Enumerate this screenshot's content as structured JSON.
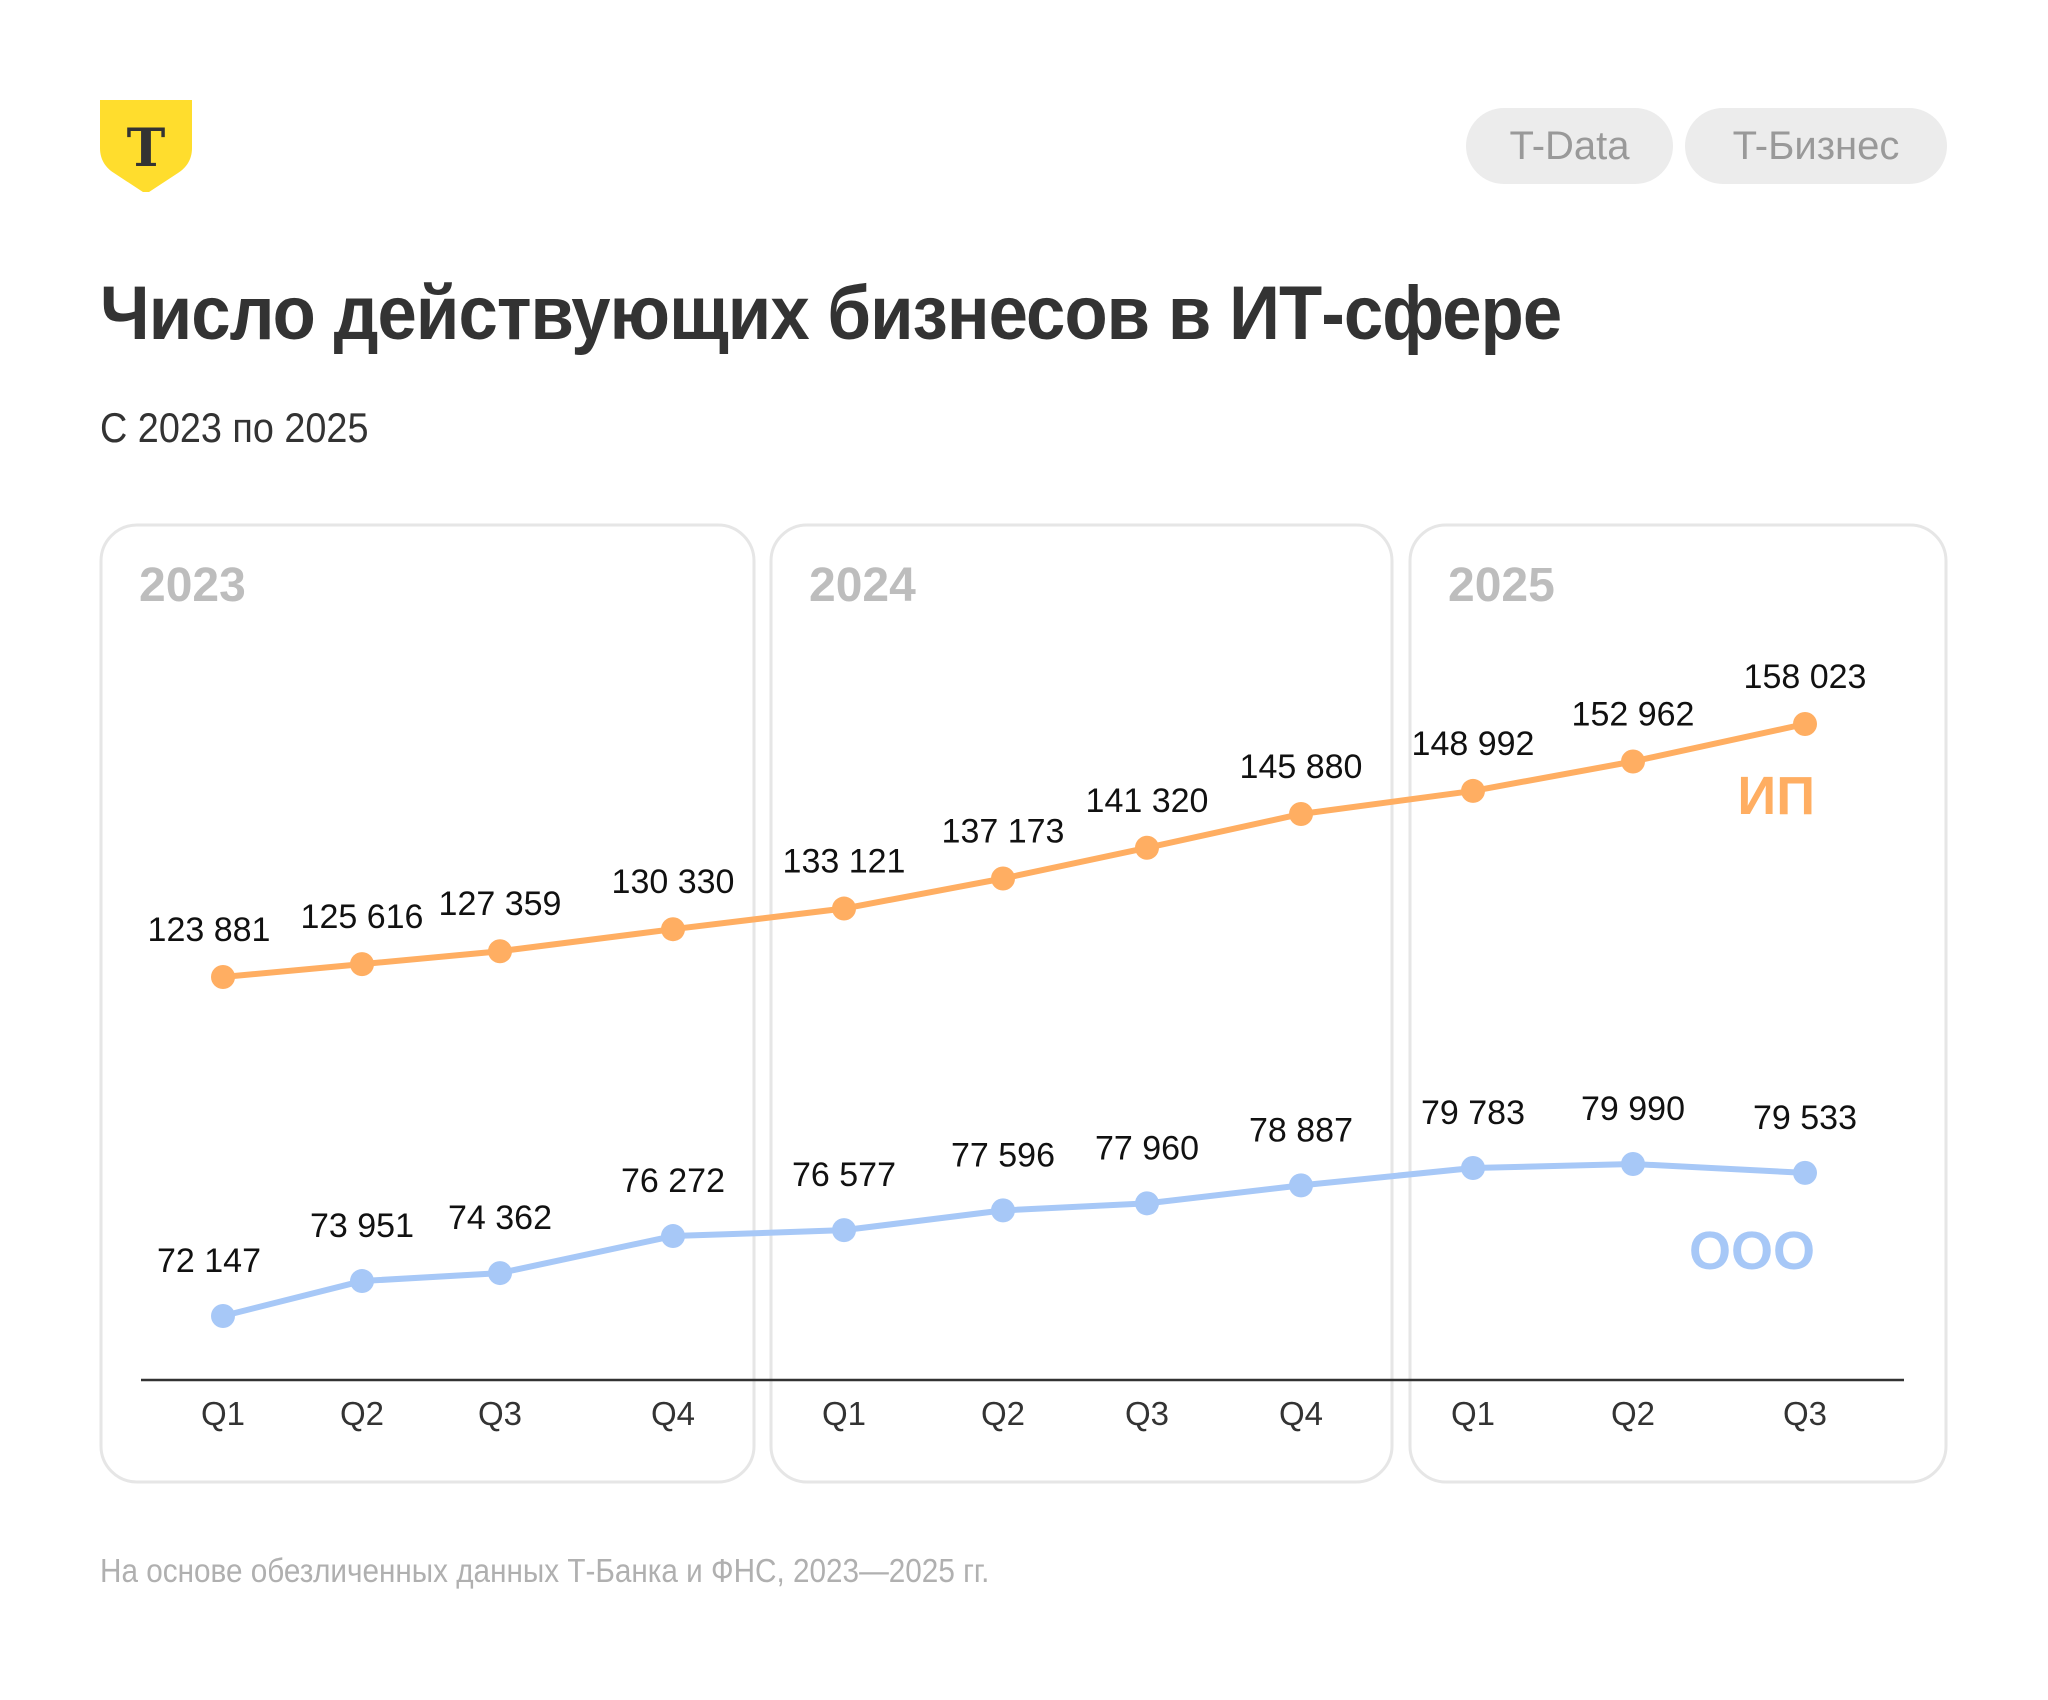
{
  "header": {
    "logo_icon": "t-bank-shield-logo",
    "logo_letter": "Т",
    "badges": [
      "T-Data",
      "T-Бизнес"
    ]
  },
  "title": "Число действующих бизнесов в ИТ-сфере",
  "subtitle": "С 2023 по 2025",
  "footer": "На основе обезличенных данных Т-Банка и ФНС, 2023—2025 гг.",
  "colors": {
    "brand_yellow": "#FFDD2D",
    "ip": "#FFAE62",
    "ooo": "#A7C8F7",
    "year_label": "#BDBDBD",
    "panel_border": "#E6E6E6",
    "axis": "#333333"
  },
  "chart_data": {
    "type": "line",
    "title": "Число действующих бизнесов в ИТ-сфере",
    "subtitle": "С 2023 по 2025",
    "xlabel": "",
    "ylabel": "",
    "grid": false,
    "legend": "inline-right",
    "groups": [
      {
        "year": "2023",
        "quarters": [
          "Q1",
          "Q2",
          "Q3",
          "Q4"
        ]
      },
      {
        "year": "2024",
        "quarters": [
          "Q1",
          "Q2",
          "Q3",
          "Q4"
        ]
      },
      {
        "year": "2025",
        "quarters": [
          "Q1",
          "Q2",
          "Q3"
        ]
      }
    ],
    "categories": [
      "2023 Q1",
      "2023 Q2",
      "2023 Q3",
      "2023 Q4",
      "2024 Q1",
      "2024 Q2",
      "2024 Q3",
      "2024 Q4",
      "2025 Q1",
      "2025 Q2",
      "2025 Q3"
    ],
    "tick_labels": [
      "Q1",
      "Q2",
      "Q3",
      "Q4",
      "Q1",
      "Q2",
      "Q3",
      "Q4",
      "Q1",
      "Q2",
      "Q3"
    ],
    "series": [
      {
        "name": "ИП",
        "color": "#FFAE62",
        "values": [
          123881,
          125616,
          127359,
          130330,
          133121,
          137173,
          141320,
          145880,
          148992,
          152962,
          158023
        ],
        "labels": [
          "123 881",
          "125 616",
          "127 359",
          "130 330",
          "133 121",
          "137 173",
          "141 320",
          "145 880",
          "148 992",
          "152 962",
          "158 023"
        ]
      },
      {
        "name": "ООО",
        "color": "#A7C8F7",
        "values": [
          72147,
          73951,
          74362,
          76272,
          76577,
          77596,
          77960,
          78887,
          79783,
          79990,
          79533
        ],
        "labels": [
          "72 147",
          "73 951",
          "74 362",
          "76 272",
          "76 577",
          "77 596",
          "77 960",
          "78 887",
          "79 783",
          "79 990",
          "79 533"
        ]
      }
    ]
  }
}
